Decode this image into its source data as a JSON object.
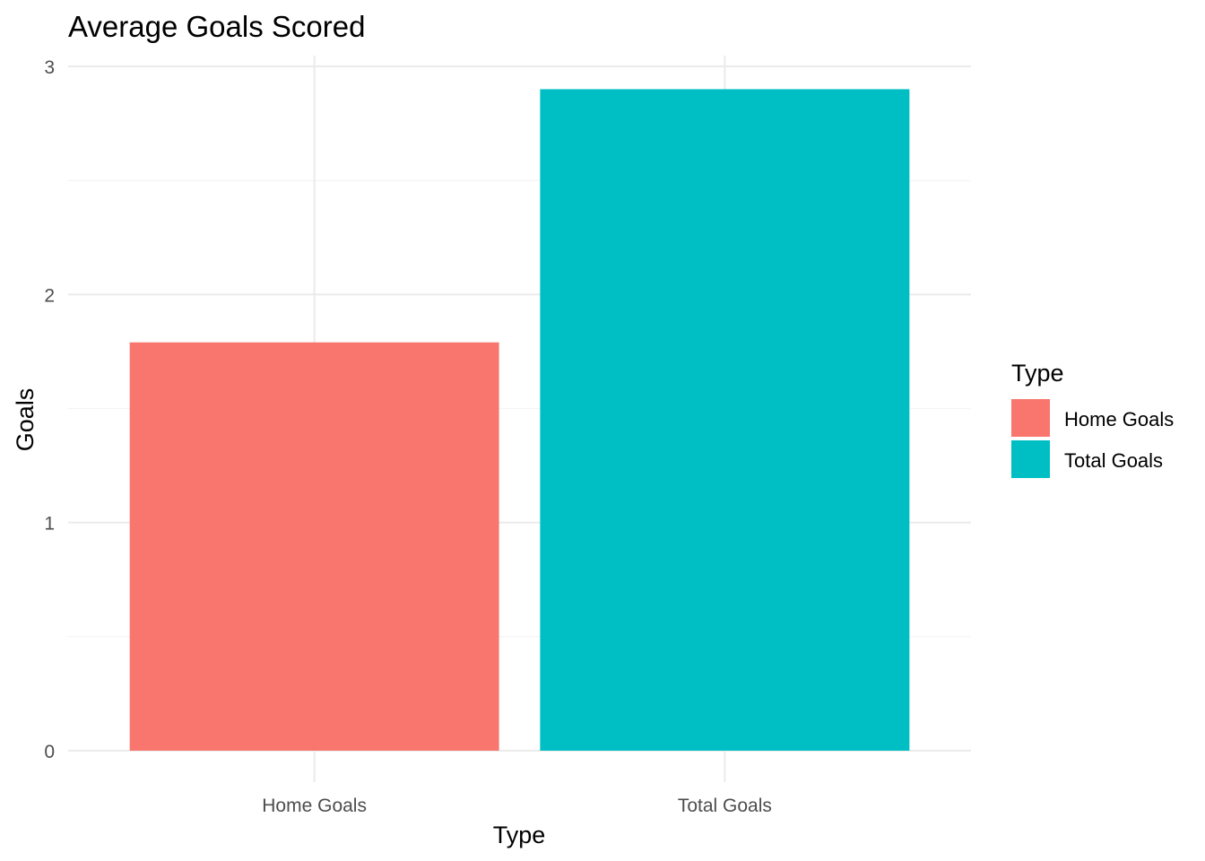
{
  "chart_data": {
    "type": "bar",
    "title": "Average Goals Scored",
    "xlabel": "Type",
    "ylabel": "Goals",
    "categories": [
      "Home Goals",
      "Total Goals"
    ],
    "values": [
      1.79,
      2.9
    ],
    "colors": [
      "#F8766D",
      "#00BFC4"
    ],
    "ylim": [
      0,
      3
    ],
    "yticks": [
      0,
      1,
      2,
      3
    ],
    "grid": true,
    "legend": {
      "title": "Type",
      "position": "right",
      "items": [
        {
          "label": "Home Goals",
          "color": "#F8766D"
        },
        {
          "label": "Total Goals",
          "color": "#00BFC4"
        }
      ]
    }
  }
}
